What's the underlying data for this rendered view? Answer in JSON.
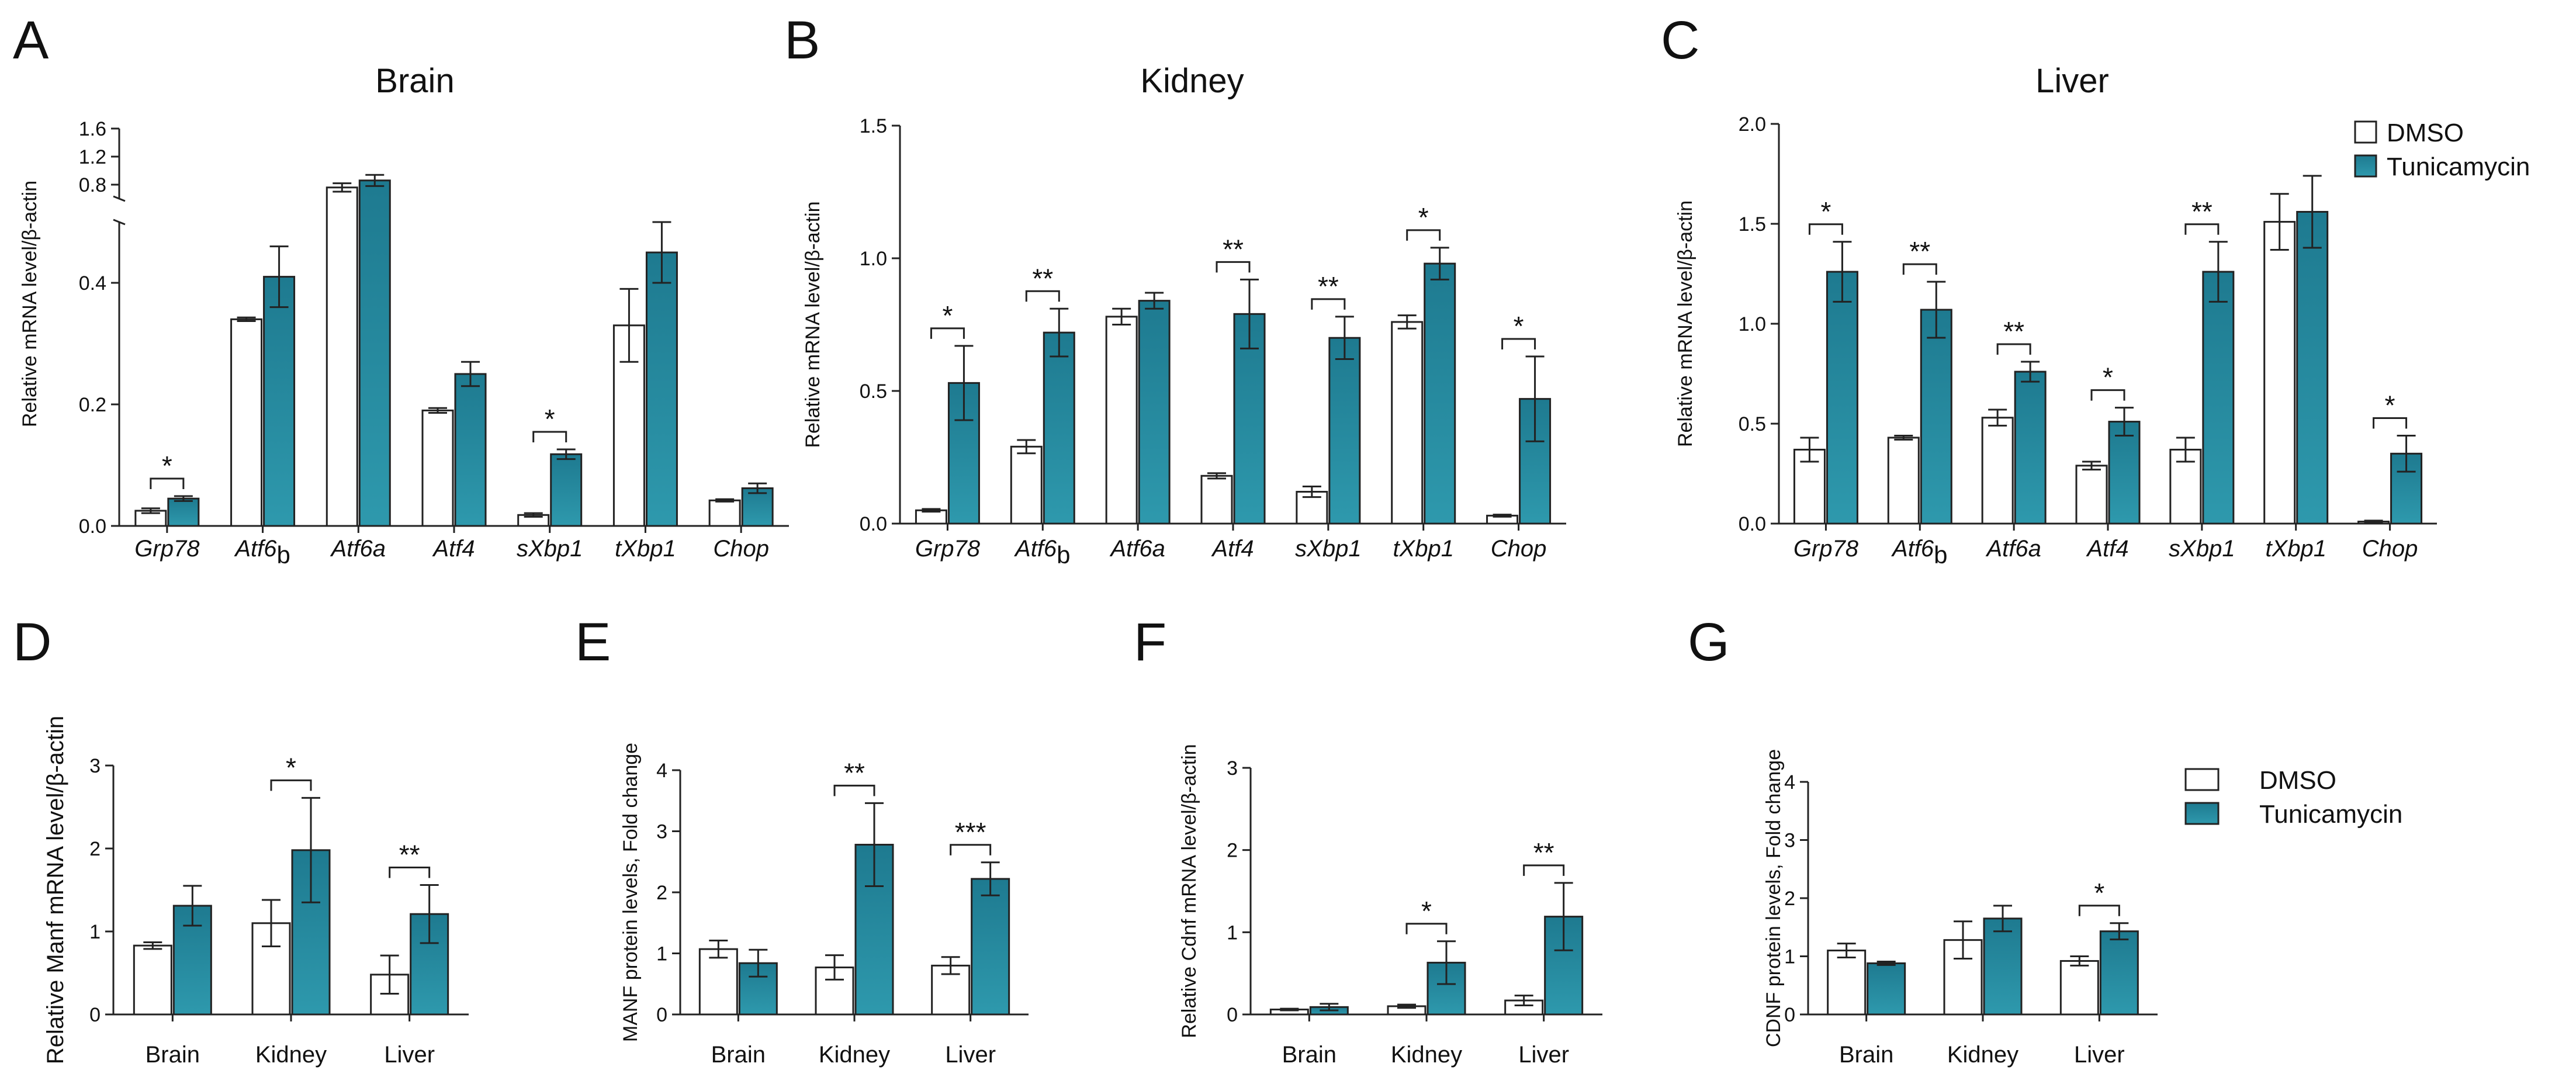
{
  "colors": {
    "dmso": "#ffffff",
    "tunicamycin_top": "#1e7a90",
    "tunicamycin_bottom": "#2e99ad",
    "axis": "#222222"
  },
  "legend_top": [
    "DMSO",
    "Tunicamycin"
  ],
  "legend_bottom": [
    "DMSO",
    "Tunicamycin"
  ],
  "chart_data": [
    {
      "id": "A",
      "letter": "A",
      "type": "bar",
      "title": "Brain",
      "ylabel": "Relative mRNA level/β-actin",
      "categories": [
        "Grp78",
        "Atf6b",
        "Atf6a",
        "Atf4",
        "sXbp1",
        "tXbp1",
        "Chop"
      ],
      "category_main": [
        "Grp78",
        "Atf6",
        "Atf6a",
        "Atf4",
        "sXbp1",
        "tXbp1",
        "Chop"
      ],
      "category_sub": [
        "",
        "b",
        "",
        "",
        "",
        "",
        ""
      ],
      "ylim": [
        0,
        1.6
      ],
      "axis_break": {
        "lower_max": 0.5,
        "upper_min": 0.6,
        "upper_max": 1.6
      },
      "yticks_lower": [
        "0.0",
        "0.2",
        "0.4"
      ],
      "yticks_upper": [
        "0.8",
        "1.2",
        "1.6"
      ],
      "series": [
        {
          "name": "DMSO",
          "values": [
            0.025,
            0.34,
            0.76,
            0.19,
            0.018,
            0.33,
            0.042
          ],
          "errors": [
            0.004,
            0.003,
            0.06,
            0.004,
            0.003,
            0.06,
            0.002
          ]
        },
        {
          "name": "Tunicamycin",
          "values": [
            0.045,
            0.41,
            0.86,
            0.25,
            0.118,
            0.45,
            0.062
          ],
          "errors": [
            0.004,
            0.05,
            0.08,
            0.02,
            0.008,
            0.05,
            0.008
          ]
        }
      ],
      "significance": [
        {
          "category": 0,
          "label": "*"
        },
        {
          "category": 4,
          "label": "*"
        }
      ]
    },
    {
      "id": "B",
      "letter": "B",
      "type": "bar",
      "title": "Kidney",
      "ylabel": "Relative mRNA level/β-actin",
      "categories": [
        "Grp78",
        "Atf6b",
        "Atf6a",
        "Atf4",
        "sXbp1",
        "tXbp1",
        "Chop"
      ],
      "category_main": [
        "Grp78",
        "Atf6",
        "Atf6a",
        "Atf4",
        "sXbp1",
        "tXbp1",
        "Chop"
      ],
      "category_sub": [
        "",
        "b",
        "",
        "",
        "",
        "",
        ""
      ],
      "ylim": [
        0,
        1.5
      ],
      "yticks": [
        "0.0",
        "0.5",
        "1.0",
        "1.5"
      ],
      "series": [
        {
          "name": "DMSO",
          "values": [
            0.05,
            0.29,
            0.78,
            0.18,
            0.12,
            0.76,
            0.03
          ],
          "errors": [
            0.005,
            0.025,
            0.03,
            0.01,
            0.02,
            0.025,
            0.004
          ]
        },
        {
          "name": "Tunicamycin",
          "values": [
            0.53,
            0.72,
            0.84,
            0.79,
            0.7,
            0.98,
            0.47
          ],
          "errors": [
            0.14,
            0.09,
            0.03,
            0.13,
            0.08,
            0.06,
            0.16
          ]
        }
      ],
      "significance": [
        {
          "category": 0,
          "label": "*"
        },
        {
          "category": 1,
          "label": "**"
        },
        {
          "category": 3,
          "label": "**"
        },
        {
          "category": 4,
          "label": "**"
        },
        {
          "category": 5,
          "label": "*"
        },
        {
          "category": 6,
          "label": "*"
        }
      ]
    },
    {
      "id": "C",
      "letter": "C",
      "type": "bar",
      "title": "Liver",
      "ylabel": "Relative mRNA level/β-actin",
      "categories": [
        "Grp78",
        "Atf6b",
        "Atf6a",
        "Atf4",
        "sXbp1",
        "tXbp1",
        "Chop"
      ],
      "category_main": [
        "Grp78",
        "Atf6",
        "Atf6a",
        "Atf4",
        "sXbp1",
        "tXbp1",
        "Chop"
      ],
      "category_sub": [
        "",
        "b",
        "",
        "",
        "",
        "",
        ""
      ],
      "ylim": [
        0,
        2.0
      ],
      "yticks": [
        "0.0",
        "0.5",
        "1.0",
        "1.5",
        "2.0"
      ],
      "series": [
        {
          "name": "DMSO",
          "values": [
            0.37,
            0.43,
            0.53,
            0.29,
            0.37,
            1.51,
            0.01
          ],
          "errors": [
            0.06,
            0.01,
            0.04,
            0.02,
            0.06,
            0.14,
            0.005
          ]
        },
        {
          "name": "Tunicamycin",
          "values": [
            1.26,
            1.07,
            0.76,
            0.51,
            1.26,
            1.56,
            0.35
          ],
          "errors": [
            0.15,
            0.14,
            0.05,
            0.07,
            0.15,
            0.18,
            0.09
          ]
        }
      ],
      "significance": [
        {
          "category": 0,
          "label": "*"
        },
        {
          "category": 1,
          "label": "**"
        },
        {
          "category": 2,
          "label": "**"
        },
        {
          "category": 3,
          "label": "*"
        },
        {
          "category": 4,
          "label": "**"
        },
        {
          "category": 6,
          "label": "*"
        }
      ]
    },
    {
      "id": "D",
      "letter": "D",
      "type": "bar",
      "title": "",
      "ylabel": "Relative Manf mRNA level/β-actin",
      "categories": [
        "Brain",
        "Kidney",
        "Liver"
      ],
      "ylim": [
        0,
        3
      ],
      "yticks": [
        "0",
        "1",
        "2",
        "3"
      ],
      "series": [
        {
          "name": "DMSO",
          "values": [
            0.83,
            1.1,
            0.48
          ],
          "errors": [
            0.04,
            0.28,
            0.23
          ]
        },
        {
          "name": "Tunicamycin",
          "values": [
            1.31,
            1.98,
            1.21
          ],
          "errors": [
            0.24,
            0.63,
            0.35
          ]
        }
      ],
      "significance": [
        {
          "category": 1,
          "label": "*"
        },
        {
          "category": 2,
          "label": "**"
        }
      ]
    },
    {
      "id": "E",
      "letter": "E",
      "type": "bar",
      "title": "",
      "ylabel": "MANF protein levels, Fold change",
      "categories": [
        "Brain",
        "Kidney",
        "Liver"
      ],
      "ylim": [
        0,
        4
      ],
      "yticks": [
        "0",
        "1",
        "2",
        "3",
        "4"
      ],
      "series": [
        {
          "name": "DMSO",
          "values": [
            1.07,
            0.77,
            0.8
          ],
          "errors": [
            0.14,
            0.2,
            0.14
          ]
        },
        {
          "name": "Tunicamycin",
          "values": [
            0.84,
            2.78,
            2.22
          ],
          "errors": [
            0.22,
            0.68,
            0.27
          ]
        }
      ],
      "significance": [
        {
          "category": 1,
          "label": "**"
        },
        {
          "category": 2,
          "label": "***"
        }
      ]
    },
    {
      "id": "F",
      "letter": "F",
      "type": "bar",
      "title": "",
      "ylabel": "Relative Cdnf mRNA level/β-actin",
      "categories": [
        "Brain",
        "Kidney",
        "Liver"
      ],
      "ylim": [
        0,
        3
      ],
      "yticks": [
        "0",
        "1",
        "2",
        "3"
      ],
      "series": [
        {
          "name": "DMSO",
          "values": [
            0.06,
            0.1,
            0.17
          ],
          "errors": [
            0.01,
            0.02,
            0.06
          ]
        },
        {
          "name": "Tunicamycin",
          "values": [
            0.09,
            0.63,
            1.19
          ],
          "errors": [
            0.04,
            0.26,
            0.41
          ]
        }
      ],
      "significance": [
        {
          "category": 1,
          "label": "*"
        },
        {
          "category": 2,
          "label": "**"
        }
      ]
    },
    {
      "id": "G",
      "letter": "G",
      "type": "bar",
      "title": "",
      "ylabel": "CDNF protein levels, Fold change",
      "categories": [
        "Brain",
        "Kidney",
        "Liver"
      ],
      "ylim": [
        0,
        4
      ],
      "yticks": [
        "0",
        "1",
        "2",
        "3",
        "4"
      ],
      "series": [
        {
          "name": "DMSO",
          "values": [
            1.1,
            1.28,
            0.92
          ],
          "errors": [
            0.12,
            0.32,
            0.08
          ]
        },
        {
          "name": "Tunicamycin",
          "values": [
            0.88,
            1.65,
            1.43
          ],
          "errors": [
            0.03,
            0.22,
            0.14
          ]
        }
      ],
      "significance": [
        {
          "category": 2,
          "label": "*"
        }
      ]
    }
  ]
}
